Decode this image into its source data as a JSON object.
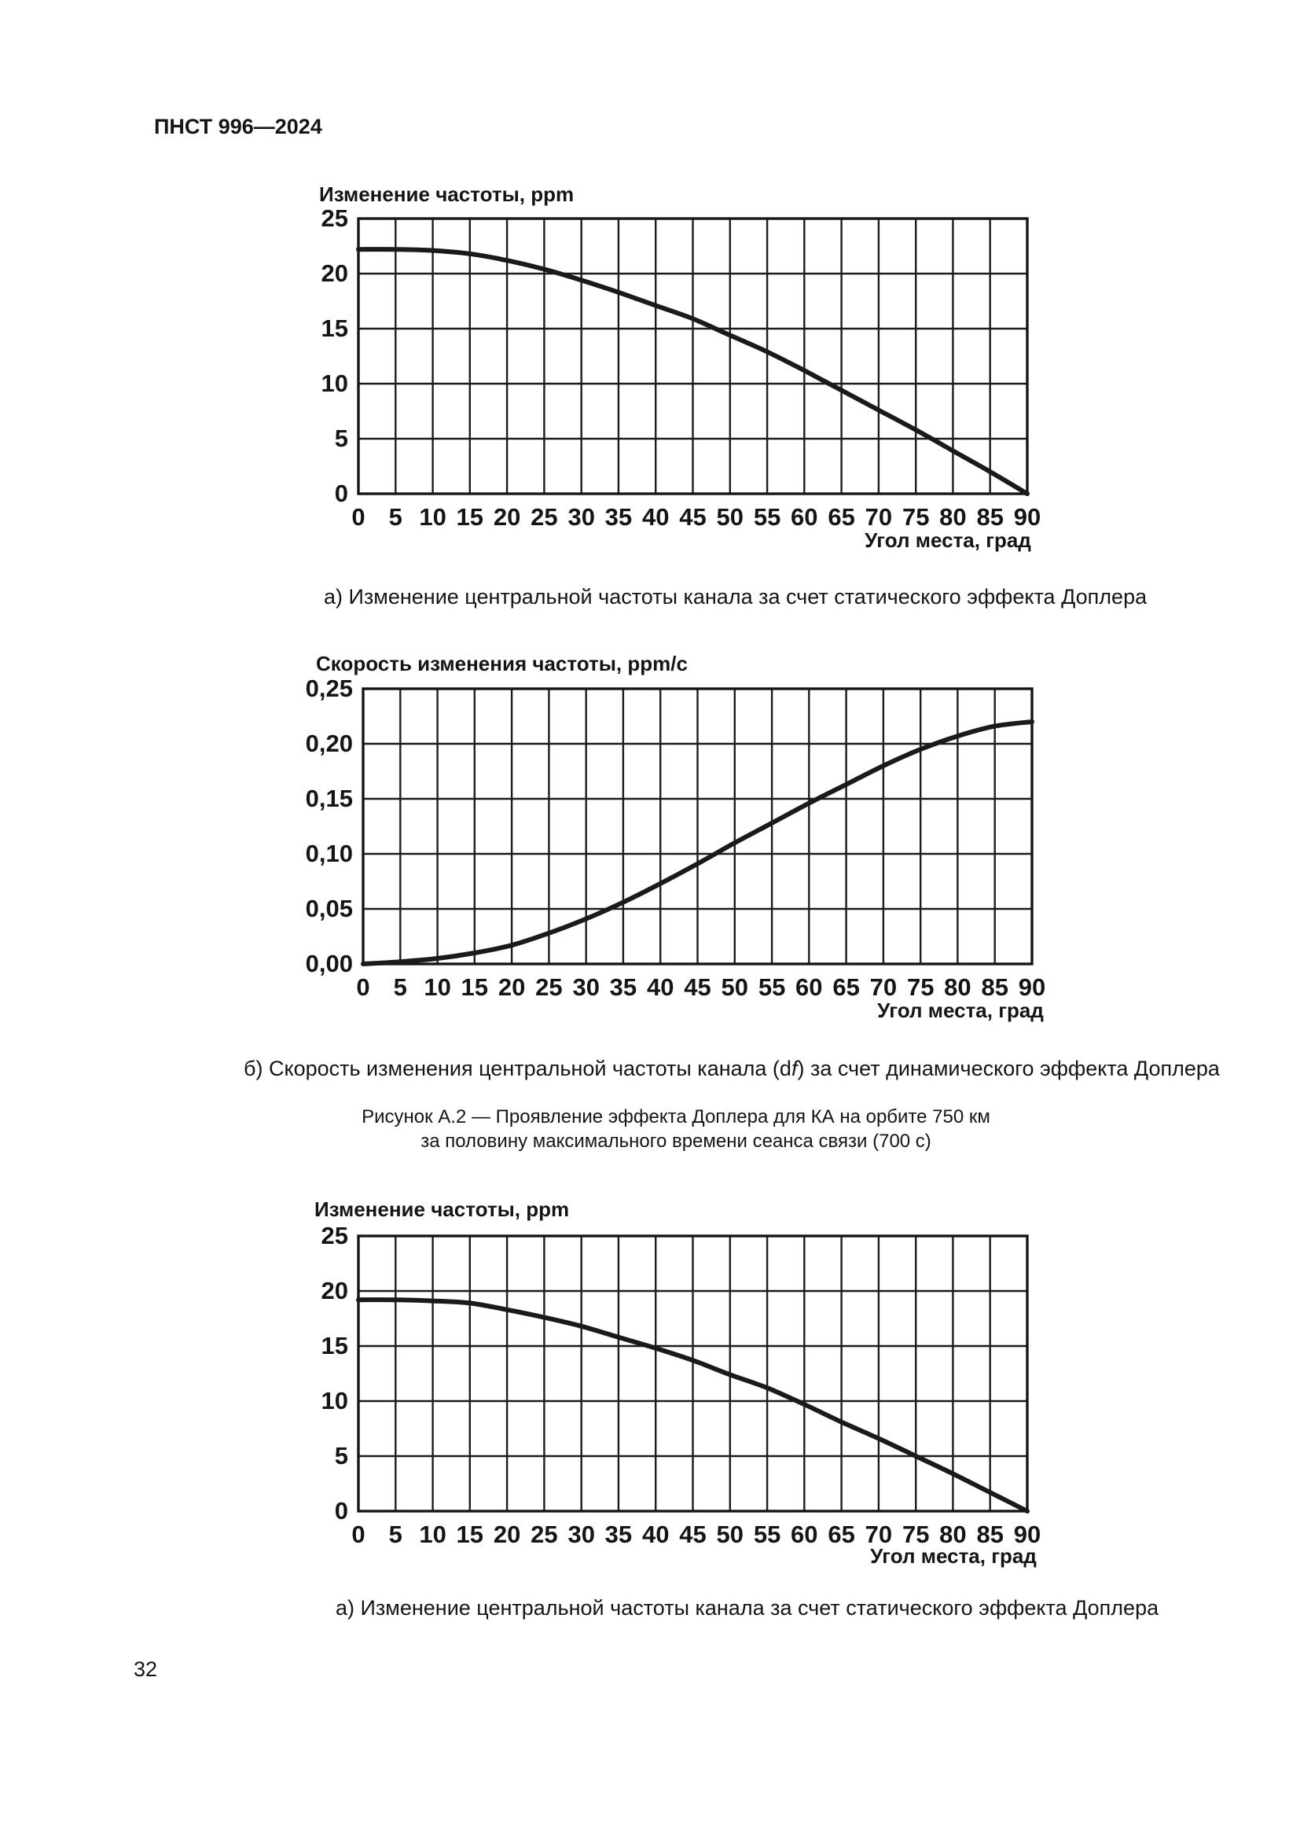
{
  "page": {
    "header": "ПНСТ 996—2024",
    "page_number": "32",
    "captions": {
      "a1": "а) Изменение центральной частоты канала за счет статического эффекта Доплера",
      "b_prefix": "б) Скорость изменения центральной частоты канала (d",
      "b_italic": "f",
      "b_suffix": ") за счет динамического эффекта Доплера",
      "figure_line1": "Рисунок А.2 — Проявление эффекта Доплера для КА на орбите 750 км",
      "figure_line2": "за половину максимального времени сеанса связи (700 с)",
      "a2": "а) Изменение центральной частоты канала за счет статического эффекта Доплера"
    }
  },
  "chart_data": [
    {
      "type": "line",
      "title": "Изменение частоты, ppm",
      "xlabel": "Угол места, град",
      "ylabel": "Изменение частоты, ppm",
      "xlim": [
        0,
        90
      ],
      "ylim": [
        0,
        25
      ],
      "grid": true,
      "legend": "none",
      "line_color": "#1a1a1a",
      "x_tick_values": [
        0,
        5,
        10,
        15,
        20,
        25,
        30,
        35,
        40,
        45,
        50,
        55,
        60,
        65,
        70,
        75,
        80,
        85,
        90
      ],
      "x_tick_labels": [
        "0",
        "5",
        "10",
        "15",
        "20",
        "25",
        "30",
        "35",
        "40",
        "45",
        "50",
        "55",
        "60",
        "65",
        "70",
        "75",
        "80",
        "85",
        "90"
      ],
      "y_tick_values": [
        0,
        5,
        10,
        15,
        20,
        25
      ],
      "y_tick_labels": [
        "0",
        "5",
        "10",
        "15",
        "20",
        "25"
      ],
      "x": [
        0,
        5,
        10,
        15,
        20,
        25,
        30,
        35,
        40,
        45,
        50,
        55,
        60,
        65,
        70,
        75,
        80,
        85,
        90
      ],
      "values": [
        22.2,
        22.2,
        22.1,
        21.8,
        21.2,
        20.4,
        19.4,
        18.3,
        17.1,
        15.9,
        14.4,
        12.9,
        11.2,
        9.4,
        7.6,
        5.8,
        3.9,
        2.0,
        0.0
      ]
    },
    {
      "type": "line",
      "title": "Скорость изменения частоты, ppm/с",
      "xlabel": "Угол места, град",
      "ylabel": "Скорость изменения частоты, ppm/с",
      "xlim": [
        0,
        90
      ],
      "ylim": [
        0,
        0.25
      ],
      "grid": true,
      "legend": "none",
      "line_color": "#1a1a1a",
      "x_tick_values": [
        0,
        5,
        10,
        15,
        20,
        25,
        30,
        35,
        40,
        45,
        50,
        55,
        60,
        65,
        70,
        75,
        80,
        85,
        90
      ],
      "x_tick_labels": [
        "0",
        "5",
        "10",
        "15",
        "20",
        "25",
        "30",
        "35",
        "40",
        "45",
        "50",
        "55",
        "60",
        "65",
        "70",
        "75",
        "80",
        "85",
        "90"
      ],
      "y_tick_values": [
        0,
        0.05,
        0.1,
        0.15,
        0.2,
        0.25
      ],
      "y_tick_labels": [
        "0,00",
        "0,05",
        "0,10",
        "0,15",
        "0,20",
        "0,25"
      ],
      "x": [
        0,
        5,
        10,
        15,
        20,
        25,
        30,
        35,
        40,
        45,
        50,
        55,
        60,
        65,
        70,
        75,
        80,
        85,
        90
      ],
      "values": [
        0.0,
        0.002,
        0.005,
        0.01,
        0.017,
        0.028,
        0.041,
        0.056,
        0.073,
        0.091,
        0.11,
        0.128,
        0.146,
        0.163,
        0.18,
        0.195,
        0.207,
        0.216,
        0.22
      ]
    },
    {
      "type": "line",
      "title": "Изменение частоты, ppm",
      "xlabel": "Угол места, град",
      "ylabel": "Изменение частоты, ppm",
      "xlim": [
        0,
        90
      ],
      "ylim": [
        0,
        25
      ],
      "grid": true,
      "legend": "none",
      "line_color": "#1a1a1a",
      "x_tick_values": [
        0,
        5,
        10,
        15,
        20,
        25,
        30,
        35,
        40,
        45,
        50,
        55,
        60,
        65,
        70,
        75,
        80,
        85,
        90
      ],
      "x_tick_labels": [
        "0",
        "5",
        "10",
        "15",
        "20",
        "25",
        "30",
        "35",
        "40",
        "45",
        "50",
        "55",
        "60",
        "65",
        "70",
        "75",
        "80",
        "85",
        "90"
      ],
      "y_tick_values": [
        0,
        5,
        10,
        15,
        20,
        25
      ],
      "y_tick_labels": [
        "0",
        "5",
        "10",
        "15",
        "20",
        "25"
      ],
      "x": [
        0,
        5,
        10,
        15,
        20,
        25,
        30,
        35,
        40,
        45,
        50,
        55,
        60,
        65,
        70,
        75,
        80,
        85,
        90
      ],
      "values": [
        19.2,
        19.2,
        19.1,
        18.9,
        18.3,
        17.6,
        16.8,
        15.8,
        14.8,
        13.7,
        12.4,
        11.2,
        9.7,
        8.1,
        6.6,
        5.0,
        3.4,
        1.7,
        0.0
      ]
    }
  ]
}
